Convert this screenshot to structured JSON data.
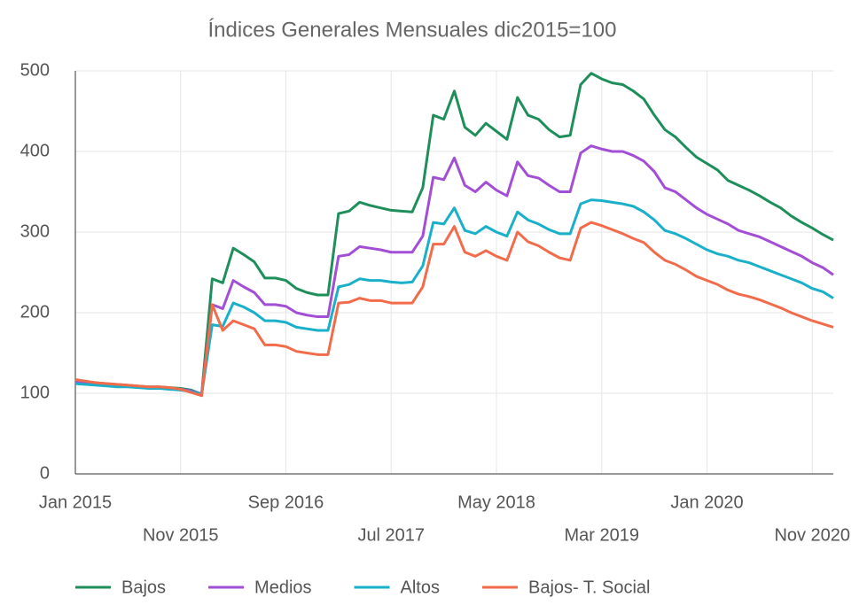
{
  "chart_data": {
    "type": "line",
    "title": "Índices Generales Mensuales dic2015=100",
    "categories": [
      "Jan 2015",
      null,
      null,
      null,
      null,
      null,
      null,
      null,
      null,
      null,
      "Nov 2015",
      null,
      null,
      null,
      null,
      null,
      null,
      null,
      null,
      null,
      "Sep 2016",
      null,
      null,
      null,
      null,
      null,
      null,
      null,
      null,
      null,
      "Jul 2017",
      null,
      null,
      null,
      null,
      null,
      null,
      null,
      null,
      null,
      "May 2018",
      null,
      null,
      null,
      null,
      null,
      null,
      null,
      null,
      null,
      "Mar 2019",
      null,
      null,
      null,
      null,
      null,
      null,
      null,
      null,
      null,
      "Jan 2020",
      null,
      null,
      null,
      null,
      null,
      null,
      null,
      null,
      null,
      "Nov 2020",
      null,
      null
    ],
    "series": [
      {
        "name": "Bajos",
        "color": "#1e8f5a",
        "values": [
          115,
          114,
          113,
          112,
          111,
          110,
          109,
          108,
          108,
          107,
          106,
          104,
          99,
          242,
          237,
          280,
          272,
          263,
          243,
          243,
          240,
          230,
          225,
          222,
          222,
          323,
          326,
          337,
          333,
          330,
          327,
          326,
          325,
          355,
          445,
          440,
          475,
          430,
          420,
          435,
          425,
          415,
          467,
          445,
          440,
          427,
          418,
          420,
          483,
          497,
          490,
          485,
          483,
          475,
          465,
          445,
          427,
          418,
          405,
          393,
          385,
          377,
          364,
          358,
          352,
          345,
          337,
          330,
          320,
          312,
          305,
          297,
          290
        ]
      },
      {
        "name": "Medios",
        "color": "#a24fd6",
        "values": [
          114,
          113,
          112,
          111,
          110,
          109,
          108,
          107,
          107,
          106,
          105,
          103,
          99,
          210,
          205,
          240,
          232,
          225,
          210,
          210,
          208,
          200,
          197,
          195,
          195,
          270,
          272,
          282,
          280,
          278,
          275,
          275,
          275,
          295,
          368,
          365,
          392,
          358,
          350,
          362,
          352,
          345,
          387,
          370,
          367,
          358,
          350,
          350,
          398,
          407,
          403,
          400,
          400,
          395,
          388,
          375,
          355,
          350,
          340,
          330,
          322,
          316,
          310,
          302,
          298,
          294,
          288,
          282,
          276,
          270,
          262,
          256,
          247
        ]
      },
      {
        "name": "Altos",
        "color": "#1ab0c9",
        "values": [
          112,
          111,
          110,
          109,
          108,
          108,
          107,
          106,
          106,
          105,
          104,
          102,
          99,
          185,
          183,
          212,
          207,
          200,
          190,
          190,
          188,
          182,
          180,
          178,
          178,
          232,
          235,
          242,
          240,
          240,
          238,
          237,
          238,
          258,
          312,
          310,
          330,
          302,
          298,
          307,
          300,
          295,
          325,
          315,
          310,
          303,
          298,
          298,
          335,
          340,
          339,
          337,
          335,
          332,
          325,
          315,
          302,
          298,
          292,
          285,
          278,
          273,
          270,
          265,
          262,
          257,
          252,
          247,
          242,
          237,
          230,
          226,
          218
        ]
      },
      {
        "name": "Bajos- T. Social",
        "color": "#f26b4a",
        "values": [
          117,
          115,
          113,
          112,
          111,
          110,
          109,
          108,
          108,
          107,
          105,
          101,
          97,
          210,
          178,
          190,
          185,
          180,
          160,
          160,
          158,
          152,
          150,
          148,
          148,
          212,
          213,
          218,
          215,
          215,
          212,
          212,
          212,
          232,
          285,
          285,
          307,
          275,
          270,
          277,
          270,
          265,
          300,
          288,
          283,
          275,
          268,
          265,
          305,
          312,
          308,
          303,
          298,
          292,
          287,
          275,
          265,
          260,
          253,
          245,
          240,
          235,
          228,
          223,
          220,
          216,
          211,
          206,
          200,
          195,
          190,
          186,
          182
        ]
      }
    ],
    "ylim": [
      0,
      500
    ],
    "yticks": [
      0,
      100,
      200,
      300,
      400,
      500
    ],
    "grid": true
  }
}
